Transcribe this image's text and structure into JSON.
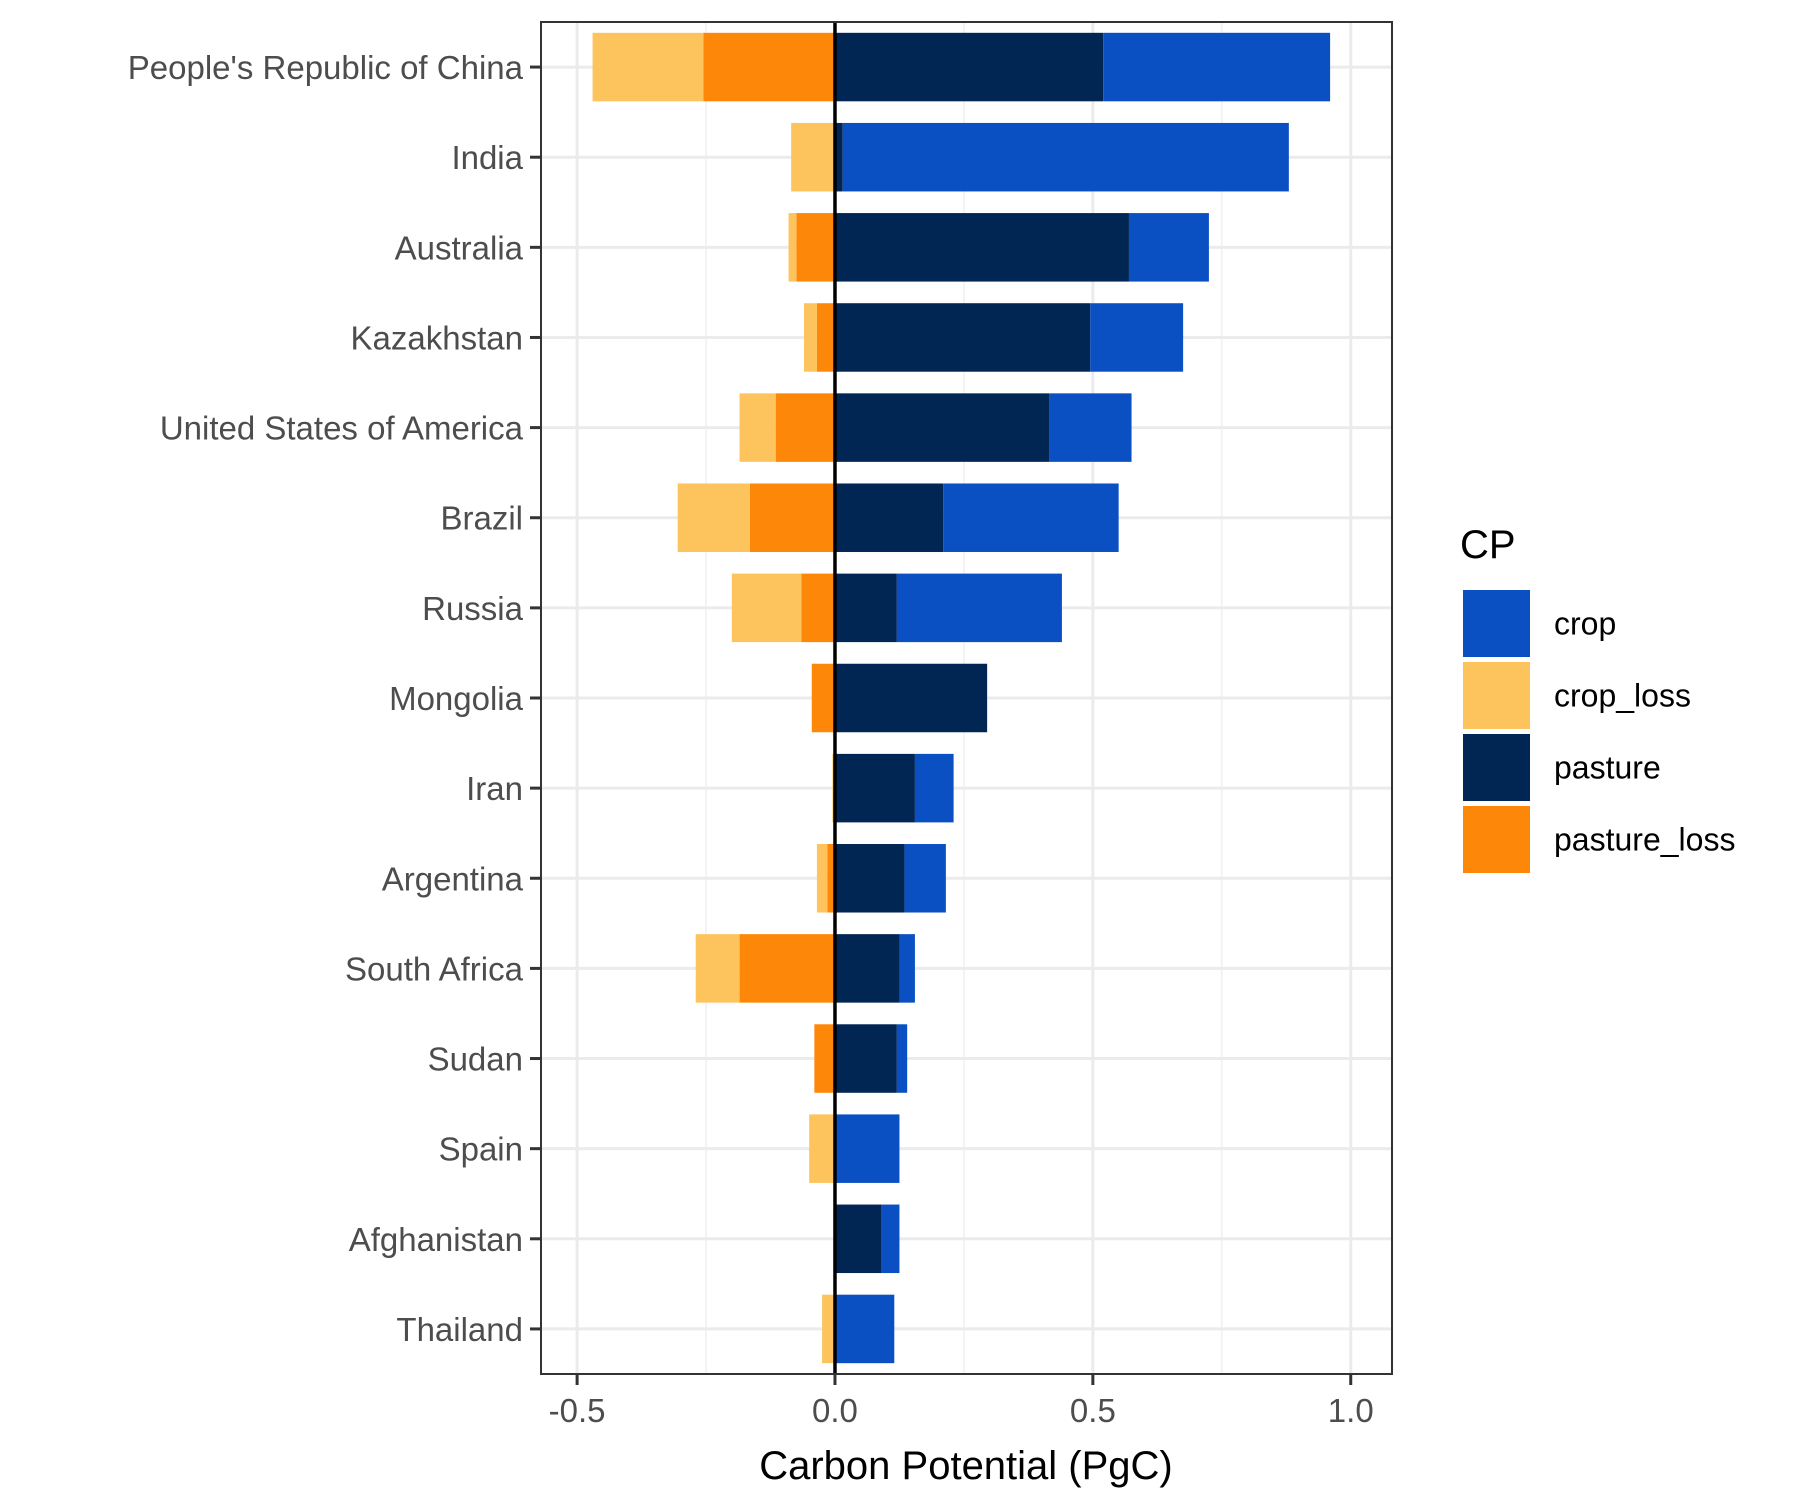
{
  "chart_data": {
    "type": "bar",
    "orientation": "horizontal",
    "stacked": true,
    "xlabel": "Carbon Potential (PgC)",
    "xlim": [
      -0.57,
      1.08
    ],
    "xticks": [
      {
        "value": -0.5,
        "label": "-0.5"
      },
      {
        "value": 0.0,
        "label": "0.0"
      },
      {
        "value": 0.5,
        "label": "0.5"
      },
      {
        "value": 1.0,
        "label": "1.0"
      }
    ],
    "grid": true,
    "reference_line": 0,
    "categories": [
      "People's Republic of China",
      "India",
      "Australia",
      "Kazakhstan",
      "United States of America",
      "Brazil",
      "Russia",
      "Mongolia",
      "Iran",
      "Argentina",
      "South Africa",
      "Sudan",
      "Spain",
      "Afghanistan",
      "Thailand"
    ],
    "series": [
      {
        "name": "crop",
        "color": "#0b50c3",
        "values": [
          0.44,
          0.865,
          0.155,
          0.18,
          0.16,
          0.34,
          0.32,
          0.0,
          0.075,
          0.08,
          0.03,
          0.02,
          0.125,
          0.035,
          0.115
        ]
      },
      {
        "name": "crop_loss",
        "color": "#fdc35c",
        "values": [
          -0.215,
          -0.085,
          -0.015,
          -0.025,
          -0.07,
          -0.14,
          -0.135,
          0.0,
          -0.005,
          -0.02,
          -0.085,
          0.0,
          -0.05,
          0.0,
          -0.025
        ]
      },
      {
        "name": "pasture",
        "color": "#022654",
        "values": [
          0.52,
          0.015,
          0.57,
          0.495,
          0.415,
          0.21,
          0.12,
          0.295,
          0.155,
          0.135,
          0.125,
          0.12,
          0.0,
          0.09,
          0.0
        ]
      },
      {
        "name": "pasture_loss",
        "color": "#fd8709",
        "values": [
          -0.255,
          0.0,
          -0.075,
          -0.035,
          -0.115,
          -0.165,
          -0.065,
          -0.045,
          0.0,
          -0.015,
          -0.185,
          -0.04,
          0.0,
          0.0,
          0.0
        ]
      }
    ],
    "stack_order": {
      "positive": [
        "pasture",
        "crop"
      ],
      "negative": [
        "pasture_loss",
        "crop_loss"
      ]
    },
    "legend": {
      "title": "CP",
      "position": "right",
      "order": [
        "crop",
        "crop_loss",
        "pasture",
        "pasture_loss"
      ]
    }
  }
}
